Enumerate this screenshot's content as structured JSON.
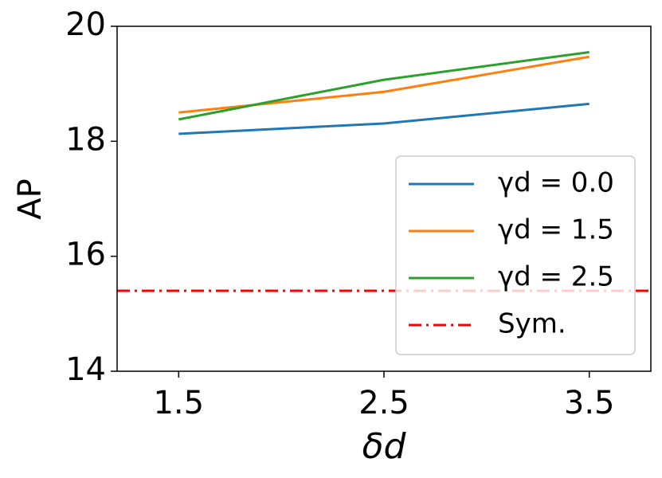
{
  "chart_data": {
    "type": "line",
    "xlabel": "δd",
    "ylabel": "AP",
    "x": [
      1.5,
      2.5,
      3.5
    ],
    "series": [
      {
        "name": "γd = 0.0",
        "color": "#1f77b4",
        "values": [
          18.13,
          18.31,
          18.65
        ]
      },
      {
        "name": "γd = 1.5",
        "color": "#ff7f0e",
        "values": [
          18.5,
          18.86,
          19.47
        ]
      },
      {
        "name": "γd = 2.5",
        "color": "#2ca02c",
        "values": [
          18.38,
          19.07,
          19.55
        ]
      }
    ],
    "reference_lines": [
      {
        "name": "Sym.",
        "y": 15.4,
        "color": "#ff0000",
        "style": "dashdot"
      }
    ],
    "xlim": [
      1.2,
      3.8
    ],
    "xticks": [
      1.5,
      2.5,
      3.5
    ],
    "ylim": [
      14,
      20
    ],
    "yticks": [
      14,
      16,
      18,
      20
    ],
    "legend": "lower right"
  }
}
